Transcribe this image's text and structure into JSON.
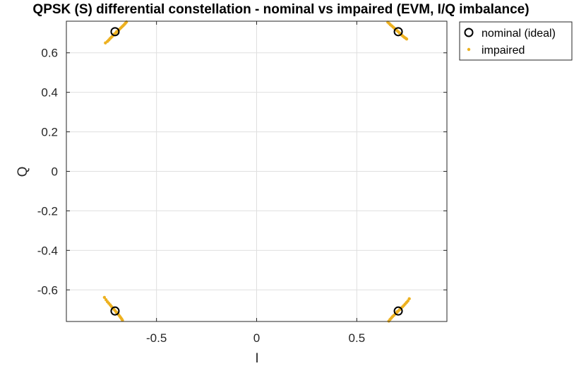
{
  "chart_data": {
    "type": "scatter",
    "title": "QPSK (S) differential constellation - nominal vs impaired (EVM, I/Q imbalance)",
    "xlabel": "I",
    "ylabel": "Q",
    "xlim": [
      -0.95,
      0.95
    ],
    "ylim": [
      -0.76,
      0.76
    ],
    "xticks": [
      -0.5,
      0,
      0.5
    ],
    "xtick_labels": [
      "-0.5",
      "0",
      "0.5"
    ],
    "yticks": [
      -0.6,
      -0.4,
      -0.2,
      0,
      0.2,
      0.4,
      0.6
    ],
    "ytick_labels": [
      "-0.6",
      "-0.4",
      "-0.2",
      "0",
      "0.2",
      "0.4",
      "0.6"
    ],
    "grid": true,
    "legend_position": "outside-top-right",
    "series": [
      {
        "name": "nominal (ideal)",
        "marker": "circle-open",
        "color": "#000000",
        "points": [
          [
            -0.707,
            0.707
          ],
          [
            0.707,
            0.707
          ],
          [
            -0.707,
            -0.707
          ],
          [
            0.707,
            -0.707
          ]
        ]
      },
      {
        "name": "impaired",
        "marker": "dot",
        "color": "#EDB120",
        "points": [
          [
            -0.755,
            0.65
          ],
          [
            -0.745,
            0.658
          ],
          [
            -0.738,
            0.665
          ],
          [
            -0.732,
            0.672
          ],
          [
            -0.726,
            0.678
          ],
          [
            -0.72,
            0.684
          ],
          [
            -0.714,
            0.69
          ],
          [
            -0.708,
            0.696
          ],
          [
            -0.702,
            0.702
          ],
          [
            -0.696,
            0.708
          ],
          [
            -0.69,
            0.714
          ],
          [
            -0.684,
            0.72
          ],
          [
            -0.678,
            0.726
          ],
          [
            -0.672,
            0.732
          ],
          [
            -0.666,
            0.738
          ],
          [
            -0.66,
            0.744
          ],
          [
            -0.655,
            0.75
          ],
          [
            -0.65,
            0.756
          ],
          [
            -0.712,
            0.694
          ],
          [
            -0.7,
            0.706
          ],
          [
            0.655,
            0.755
          ],
          [
            0.662,
            0.748
          ],
          [
            0.668,
            0.742
          ],
          [
            0.675,
            0.736
          ],
          [
            0.682,
            0.73
          ],
          [
            0.688,
            0.724
          ],
          [
            0.695,
            0.718
          ],
          [
            0.701,
            0.712
          ],
          [
            0.708,
            0.706
          ],
          [
            0.714,
            0.7
          ],
          [
            0.72,
            0.694
          ],
          [
            0.726,
            0.688
          ],
          [
            0.732,
            0.683
          ],
          [
            0.738,
            0.678
          ],
          [
            0.744,
            0.674
          ],
          [
            0.749,
            0.67
          ],
          [
            0.69,
            0.722
          ],
          [
            0.716,
            0.697
          ],
          [
            -0.76,
            -0.638
          ],
          [
            -0.752,
            -0.65
          ],
          [
            -0.745,
            -0.66
          ],
          [
            -0.738,
            -0.668
          ],
          [
            -0.731,
            -0.676
          ],
          [
            -0.725,
            -0.684
          ],
          [
            -0.719,
            -0.691
          ],
          [
            -0.713,
            -0.698
          ],
          [
            -0.707,
            -0.705
          ],
          [
            -0.701,
            -0.712
          ],
          [
            -0.695,
            -0.719
          ],
          [
            -0.689,
            -0.726
          ],
          [
            -0.684,
            -0.733
          ],
          [
            -0.679,
            -0.74
          ],
          [
            -0.674,
            -0.747
          ],
          [
            -0.67,
            -0.754
          ],
          [
            -0.716,
            -0.695
          ],
          [
            -0.7,
            -0.714
          ],
          [
            0.66,
            -0.758
          ],
          [
            0.666,
            -0.75
          ],
          [
            0.672,
            -0.743
          ],
          [
            0.678,
            -0.736
          ],
          [
            0.685,
            -0.729
          ],
          [
            0.692,
            -0.722
          ],
          [
            0.699,
            -0.715
          ],
          [
            0.706,
            -0.708
          ],
          [
            0.713,
            -0.701
          ],
          [
            0.72,
            -0.694
          ],
          [
            0.727,
            -0.687
          ],
          [
            0.734,
            -0.68
          ],
          [
            0.741,
            -0.672
          ],
          [
            0.748,
            -0.664
          ],
          [
            0.755,
            -0.656
          ],
          [
            0.762,
            -0.645
          ],
          [
            0.702,
            -0.71
          ],
          [
            0.718,
            -0.697
          ]
        ]
      }
    ]
  }
}
